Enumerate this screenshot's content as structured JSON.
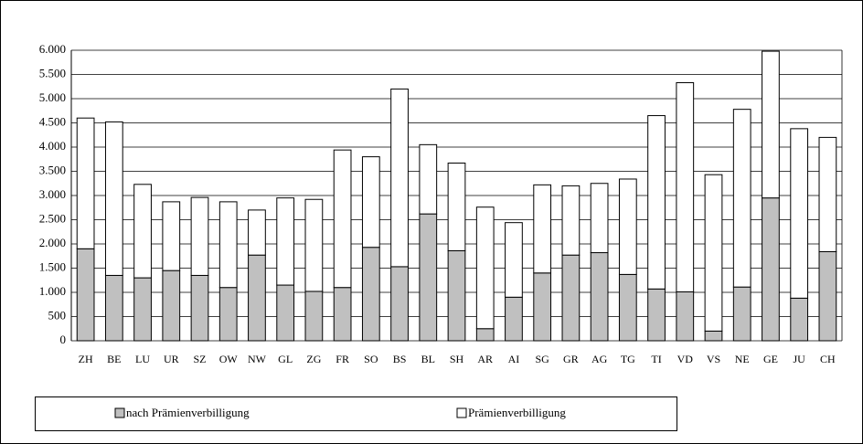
{
  "chart_data": {
    "type": "stacked-bar",
    "categories": [
      "ZH",
      "BE",
      "LU",
      "UR",
      "SZ",
      "OW",
      "NW",
      "GL",
      "ZG",
      "FR",
      "SO",
      "BS",
      "BL",
      "SH",
      "AR",
      "AI",
      "SG",
      "GR",
      "AG",
      "TG",
      "TI",
      "VD",
      "VS",
      "NE",
      "GE",
      "JU",
      "CH"
    ],
    "series": [
      {
        "name": "nach Prämienverbilligung",
        "color": "#c0c0c0",
        "values": [
          1900,
          1350,
          1300,
          1450,
          1350,
          1100,
          1770,
          1150,
          1020,
          1100,
          1930,
          1530,
          2620,
          1860,
          250,
          900,
          1400,
          1770,
          1820,
          1370,
          1070,
          1010,
          200,
          1110,
          2950,
          880,
          1840
        ]
      },
      {
        "name": "Prämienverbilligung",
        "color": "#ffffff",
        "values": [
          2700,
          3170,
          1930,
          1420,
          1610,
          1770,
          930,
          1800,
          1900,
          2840,
          1870,
          3670,
          1430,
          1810,
          2510,
          1540,
          1820,
          1430,
          1430,
          1970,
          3580,
          4320,
          3230,
          3670,
          3030,
          3500,
          2360
        ]
      }
    ],
    "ylim": [
      0,
      6000
    ],
    "yticks": [
      0,
      500,
      {
        "value": 1000,
        "label": "1.000"
      },
      {
        "value": 1500,
        "label": "1.500"
      },
      {
        "value": 2000,
        "label": "2.000"
      },
      {
        "value": 2500,
        "label": "2.500"
      },
      {
        "value": 3000,
        "label": "3.000"
      },
      {
        "value": 3500,
        "label": "3.500"
      },
      {
        "value": 4000,
        "label": "4.000"
      },
      {
        "value": 4500,
        "label": "4.500"
      },
      {
        "value": 5000,
        "label": "5.000"
      },
      {
        "value": 5500,
        "label": "5.500"
      },
      {
        "value": 6000,
        "label": "6.000"
      }
    ],
    "grid": true
  }
}
